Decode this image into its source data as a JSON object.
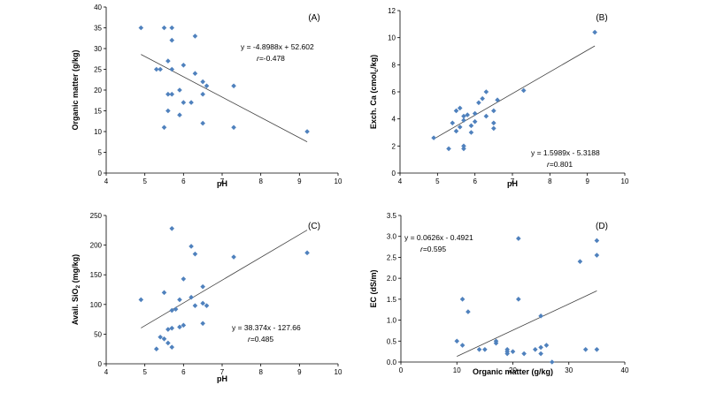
{
  "chart_data": [
    {
      "type": "scatter",
      "panel_label": "(A)",
      "xlabel": "pH",
      "ylabel": "Organic matter (g/kg)",
      "xlim": [
        4,
        10
      ],
      "ylim": [
        0,
        40
      ],
      "xticks": [
        4,
        5,
        6,
        7,
        8,
        9,
        10
      ],
      "yticks": [
        0,
        5,
        10,
        15,
        20,
        25,
        30,
        35,
        40
      ],
      "equation": "y = -4.8988x + 52.602",
      "r_text": "r=-0.478",
      "trendline": {
        "slope": -4.8988,
        "intercept": 52.602,
        "x_range": [
          4.9,
          9.2
        ]
      },
      "points": [
        [
          4.9,
          35
        ],
        [
          5.3,
          25
        ],
        [
          5.4,
          25
        ],
        [
          5.5,
          35
        ],
        [
          5.5,
          11
        ],
        [
          5.6,
          27
        ],
        [
          5.6,
          19
        ],
        [
          5.6,
          15
        ],
        [
          5.7,
          35
        ],
        [
          5.7,
          32
        ],
        [
          5.7,
          25
        ],
        [
          5.7,
          19
        ],
        [
          5.9,
          20
        ],
        [
          5.9,
          14
        ],
        [
          6.0,
          26
        ],
        [
          6.0,
          17
        ],
        [
          6.2,
          17
        ],
        [
          6.3,
          33
        ],
        [
          6.3,
          24
        ],
        [
          6.5,
          22
        ],
        [
          6.5,
          19
        ],
        [
          6.5,
          12
        ],
        [
          6.6,
          21
        ],
        [
          7.3,
          21
        ],
        [
          7.3,
          11
        ],
        [
          9.2,
          10
        ]
      ],
      "grid": false,
      "legend": "none"
    },
    {
      "type": "scatter",
      "panel_label": "(B)",
      "xlabel": "pH",
      "ylabel_parts": [
        "Exch. Ca (cmol",
        "c",
        "/kg)"
      ],
      "xlim": [
        4,
        10
      ],
      "ylim": [
        0,
        12
      ],
      "xticks": [
        4,
        5,
        6,
        7,
        8,
        9,
        10
      ],
      "yticks": [
        0,
        2,
        4,
        6,
        8,
        10,
        12
      ],
      "equation": "y = 1.5989x - 5.3188",
      "r_text": "r=0.801",
      "trendline": {
        "slope": 1.5989,
        "intercept": -5.3188,
        "x_range": [
          4.9,
          9.2
        ]
      },
      "points": [
        [
          4.9,
          2.6
        ],
        [
          5.3,
          1.8
        ],
        [
          5.4,
          3.7
        ],
        [
          5.5,
          4.6
        ],
        [
          5.5,
          3.1
        ],
        [
          5.6,
          4.8
        ],
        [
          5.6,
          3.4
        ],
        [
          5.7,
          4.2
        ],
        [
          5.7,
          3.9
        ],
        [
          5.7,
          2.0
        ],
        [
          5.7,
          1.8
        ],
        [
          5.8,
          4.3
        ],
        [
          5.9,
          3.5
        ],
        [
          5.9,
          3.0
        ],
        [
          6.0,
          4.4
        ],
        [
          6.0,
          3.8
        ],
        [
          6.1,
          5.2
        ],
        [
          6.2,
          5.5
        ],
        [
          6.3,
          6.0
        ],
        [
          6.3,
          4.2
        ],
        [
          6.5,
          4.6
        ],
        [
          6.5,
          3.7
        ],
        [
          6.5,
          3.3
        ],
        [
          6.6,
          5.4
        ],
        [
          7.3,
          6.1
        ],
        [
          9.2,
          10.4
        ]
      ],
      "grid": false,
      "legend": "none"
    },
    {
      "type": "scatter",
      "panel_label": "(C)",
      "xlabel": "pH",
      "ylabel_parts": [
        "Avail. SiO",
        "2",
        " (mg/kg)"
      ],
      "xlim": [
        4,
        10
      ],
      "ylim": [
        0,
        250
      ],
      "xticks": [
        4,
        5,
        6,
        7,
        8,
        9,
        10
      ],
      "yticks": [
        0,
        50,
        100,
        150,
        200,
        250
      ],
      "equation": "y = 38.374x - 127.66",
      "r_text": "r=0.485",
      "trendline": {
        "slope": 38.374,
        "intercept": -127.66,
        "x_range": [
          4.9,
          9.2
        ]
      },
      "points": [
        [
          4.9,
          108
        ],
        [
          5.3,
          25
        ],
        [
          5.4,
          45
        ],
        [
          5.5,
          120
        ],
        [
          5.5,
          42
        ],
        [
          5.6,
          58
        ],
        [
          5.6,
          35
        ],
        [
          5.7,
          228
        ],
        [
          5.7,
          90
        ],
        [
          5.7,
          60
        ],
        [
          5.7,
          28
        ],
        [
          5.8,
          92
        ],
        [
          5.9,
          108
        ],
        [
          5.9,
          62
        ],
        [
          6.0,
          143
        ],
        [
          6.0,
          65
        ],
        [
          6.2,
          198
        ],
        [
          6.2,
          112
        ],
        [
          6.3,
          185
        ],
        [
          6.3,
          98
        ],
        [
          6.5,
          130
        ],
        [
          6.5,
          102
        ],
        [
          6.5,
          68
        ],
        [
          6.6,
          98
        ],
        [
          7.3,
          180
        ],
        [
          9.2,
          187
        ]
      ],
      "grid": false,
      "legend": "none"
    },
    {
      "type": "scatter",
      "panel_label": "(D)",
      "xlabel": "Organic matter (g/kg)",
      "ylabel": "EC (dS/m)",
      "xlim": [
        0,
        40
      ],
      "ylim": [
        0,
        3.5
      ],
      "xticks": [
        0,
        10,
        20,
        30,
        40
      ],
      "yticks": [
        0.0,
        0.5,
        1.0,
        1.5,
        2.0,
        2.5,
        3.0,
        3.5
      ],
      "ytick_decimals": 1,
      "equation": "y = 0.0626x - 0.4921",
      "r_text": "r=0.595",
      "trendline": {
        "slope": 0.0626,
        "intercept": -0.4921,
        "x_range": [
          10,
          35
        ]
      },
      "points": [
        [
          10,
          0.5
        ],
        [
          11,
          1.5
        ],
        [
          11,
          0.4
        ],
        [
          12,
          1.2
        ],
        [
          14,
          0.3
        ],
        [
          15,
          0.3
        ],
        [
          17,
          0.45
        ],
        [
          17,
          0.5
        ],
        [
          19,
          0.3
        ],
        [
          19,
          0.25
        ],
        [
          19,
          0.2
        ],
        [
          20,
          0.25
        ],
        [
          21,
          2.95
        ],
        [
          21,
          1.5
        ],
        [
          22,
          0.2
        ],
        [
          24,
          0.3
        ],
        [
          25,
          0.35
        ],
        [
          25,
          1.1
        ],
        [
          25,
          0.2
        ],
        [
          26,
          0.4
        ],
        [
          27,
          0.0
        ],
        [
          32,
          2.4
        ],
        [
          33,
          0.3
        ],
        [
          35,
          2.9
        ],
        [
          35,
          2.55
        ],
        [
          35,
          0.3
        ]
      ],
      "grid": false,
      "legend": "none"
    }
  ],
  "colors": {
    "marker": "#4f81bd",
    "trendline": "#404040",
    "axis": "#000000"
  }
}
